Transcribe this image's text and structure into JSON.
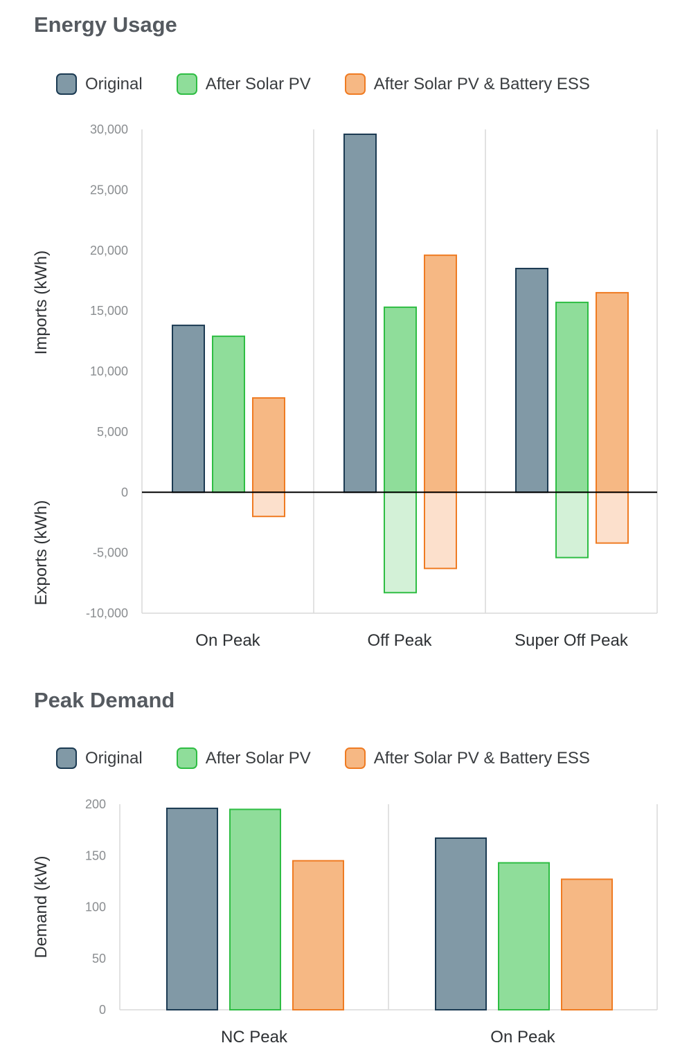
{
  "colors": {
    "original_fill": "#8199a6",
    "original_stroke": "#1b3a52",
    "solar_fill": "#8fdd9a",
    "solar_stroke": "#2ebd43",
    "battery_fill": "#f6b884",
    "battery_stroke": "#ef7b22",
    "solar_export_fill": "#d3f1d7",
    "battery_export_fill": "#fce0cc",
    "gridline": "#d9d9d9",
    "zero_line": "#000000"
  },
  "chart_data": [
    {
      "type": "bar",
      "title": "Energy Usage",
      "ylabel_positive": "Imports (kWh)",
      "ylabel_negative": "Exports (kWh)",
      "ylim": [
        -10000,
        30000
      ],
      "yticks": [
        30000,
        25000,
        20000,
        15000,
        10000,
        5000,
        0,
        -5000,
        -10000
      ],
      "ytick_labels": [
        "30,000",
        "25,000",
        "20,000",
        "15,000",
        "10,000",
        "5,000",
        "0",
        "-5,000",
        "-10,000"
      ],
      "categories": [
        "On Peak",
        "Off Peak",
        "Super Off Peak"
      ],
      "series": [
        {
          "name": "Original",
          "values": [
            13800,
            29600,
            18500
          ],
          "export_values": [
            0,
            0,
            0
          ]
        },
        {
          "name": "After Solar PV",
          "values": [
            12900,
            15300,
            15700
          ],
          "export_values": [
            0,
            -8300,
            -5400
          ]
        },
        {
          "name": "After Solar PV & Battery ESS",
          "values": [
            7800,
            19600,
            16500
          ],
          "export_values": [
            -2000,
            -6300,
            -4200
          ]
        }
      ]
    },
    {
      "type": "bar",
      "title": "Peak Demand",
      "ylabel": "Demand (kW)",
      "ylim": [
        0,
        200
      ],
      "yticks": [
        200,
        150,
        100,
        50,
        0
      ],
      "ytick_labels": [
        "200",
        "150",
        "100",
        "50",
        "0"
      ],
      "categories": [
        "NC Peak",
        "On Peak"
      ],
      "series": [
        {
          "name": "Original",
          "values": [
            196,
            167
          ]
        },
        {
          "name": "After Solar PV",
          "values": [
            195,
            143
          ]
        },
        {
          "name": "After Solar PV & Battery ESS",
          "values": [
            145,
            127
          ]
        }
      ]
    }
  ]
}
